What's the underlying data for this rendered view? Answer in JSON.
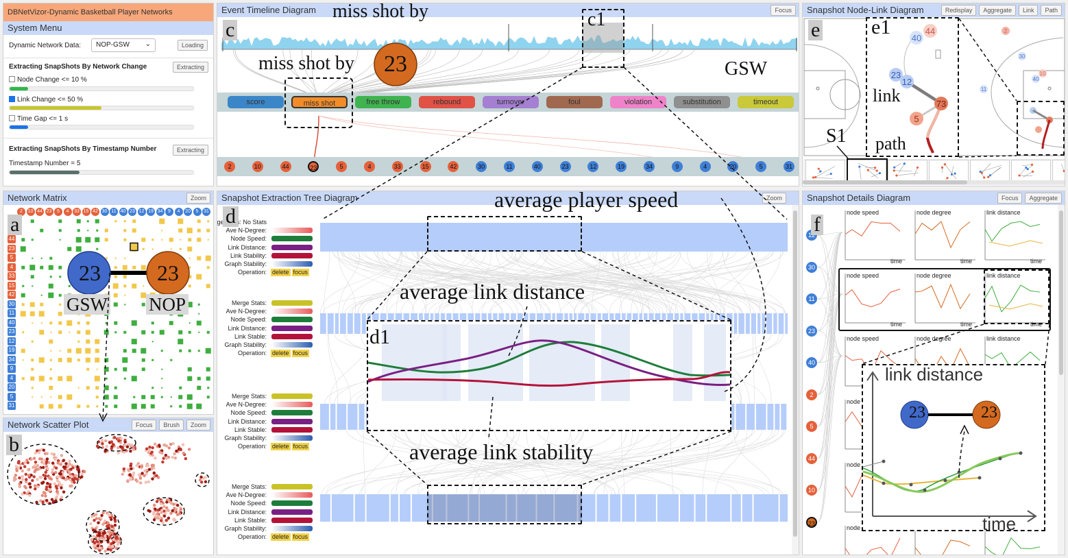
{
  "app_title": "DBNetVizor-Dynamic Basketball Player Networks Visualization",
  "system_menu": {
    "title": "System Menu",
    "dataset_label": "Dynamic Network Data:",
    "dataset_value": "NOP-GSW",
    "loading_btn": "Loading",
    "section1_title": "Extracting SnapShots By Network Change",
    "extract_btn1": "Extracting",
    "node_change": "Node Change <= 10 %",
    "node_change_checked": false,
    "node_change_level": 0.1,
    "link_change": "Link Change <= 50 %",
    "link_change_checked": true,
    "link_change_level": 0.5,
    "time_gap": "Time Gap <= 1 s",
    "time_gap_checked": false,
    "time_gap_level": 0.1,
    "section2_title": "Extracting SnapShots By Timestamp Number",
    "extract_btn2": "Extracting",
    "timestamp_number": "Timestamp Number = 5",
    "timestamp_level": 0.38
  },
  "matrix": {
    "title": "Network Matrix",
    "zoom_btn": "Zoom",
    "panel_tag": "a",
    "players": [
      "2",
      "10",
      "44",
      "23",
      "5",
      "4",
      "33",
      "15",
      "42",
      "30",
      "11",
      "40",
      "23",
      "12",
      "19",
      "34",
      "9",
      "4",
      "20",
      "5",
      "31"
    ],
    "team_left": "GSW",
    "team_right": "NOP",
    "node_left": "23",
    "node_right": "23"
  },
  "scatter": {
    "title": "Network Scatter Plot",
    "buttons": [
      "Focus",
      "Brush",
      "Zoom"
    ],
    "panel_tag": "b"
  },
  "timeline": {
    "title": "Event Timeline Diagram",
    "focus_btn": "Focus",
    "panel_tag": "c",
    "zoom_tag": "c1",
    "annot_top": "miss shot by",
    "annot_mid": "miss shot by",
    "annot_player": "23",
    "team_label": "GSW",
    "events": [
      {
        "label": "score",
        "color": "#3a86c8"
      },
      {
        "label": "miss shot",
        "color": "#f28c28"
      },
      {
        "label": "free throw",
        "color": "#3fb34f"
      },
      {
        "label": "rebound",
        "color": "#e15146"
      },
      {
        "label": "turnover",
        "color": "#a57fd1"
      },
      {
        "label": "foul",
        "color": "#a0694f"
      },
      {
        "label": "violation",
        "color": "#ef83c9"
      },
      {
        "label": "substitution",
        "color": "#8f8f8f"
      },
      {
        "label": "timeout",
        "color": "#c9c93a"
      }
    ],
    "players": [
      {
        "n": "2",
        "team": "NOP"
      },
      {
        "n": "10",
        "team": "NOP"
      },
      {
        "n": "44",
        "team": "NOP"
      },
      {
        "n": "23",
        "team": "NOP"
      },
      {
        "n": "5",
        "team": "NOP"
      },
      {
        "n": "4",
        "team": "NOP"
      },
      {
        "n": "33",
        "team": "NOP"
      },
      {
        "n": "15",
        "team": "NOP"
      },
      {
        "n": "42",
        "team": "NOP"
      },
      {
        "n": "30",
        "team": "GSW"
      },
      {
        "n": "11",
        "team": "GSW"
      },
      {
        "n": "40",
        "team": "GSW"
      },
      {
        "n": "23",
        "team": "GSW"
      },
      {
        "n": "12",
        "team": "GSW"
      },
      {
        "n": "19",
        "team": "GSW"
      },
      {
        "n": "34",
        "team": "GSW"
      },
      {
        "n": "9",
        "team": "GSW"
      },
      {
        "n": "4",
        "team": "GSW"
      },
      {
        "n": "20",
        "team": "GSW"
      },
      {
        "n": "5",
        "team": "GSW"
      },
      {
        "n": "31",
        "team": "GSW"
      }
    ]
  },
  "tree": {
    "title": "Snapshot Extraction Tree Diagram",
    "zoom_btn": "Zoom",
    "panel_tag": "d",
    "zoom_tag": "d1",
    "annot_speed": "average player speed",
    "annot_distance": "average link distance",
    "annot_stability": "average link stability",
    "level0": [
      "Merge Stats: No Stats",
      "Ave N-Degree:",
      "Node Speed:",
      "Link Distance:",
      "Link Stability:",
      "Graph Stability:",
      "Operation:"
    ],
    "level1": [
      "Merge Stats:",
      "Ave N-Degree:",
      "Node Speed:",
      "Link Distance:",
      "Link Stable:",
      "Graph Stability:",
      "Operation:"
    ],
    "level2": [
      "Merge Stats:",
      "Ave N-Degree:",
      "Node Speed:",
      "Link Distance:",
      "Link Stable:",
      "Graph Stability:",
      "Operation:"
    ],
    "level3": [
      "Merge Stats:",
      "Ave N-Degree:",
      "Node Speed:",
      "Link Distance:",
      "Link Stable:",
      "Graph Stability:",
      "Operation:"
    ],
    "op_delete": "delete",
    "op_focus": "focus"
  },
  "nodelink": {
    "title": "Snapshot Node-Link Diagram",
    "buttons": [
      "Redisplay",
      "Aggregate",
      "Link",
      "Path"
    ],
    "panel_tag": "e",
    "zoom_tag": "e1",
    "link_label": "link",
    "path_label": "path",
    "s1_label": "S1",
    "nodes": [
      "40",
      "44",
      "23",
      "12",
      "73",
      "5",
      "2",
      "30",
      "11",
      "40",
      "12",
      "5",
      "13"
    ]
  },
  "details": {
    "title": "Snapshot Details Diagram",
    "buttons": [
      "Focus",
      "Aggregate"
    ],
    "panel_tag": "f",
    "col_titles": [
      "node speed",
      "node degree",
      "link distance"
    ],
    "x_label": "time",
    "side_numbers": [
      {
        "n": "12",
        "team": "GSW"
      },
      {
        "n": "30",
        "team": "GSW"
      },
      {
        "n": "11",
        "team": "GSW"
      },
      {
        "n": "23",
        "team": "GSW"
      },
      {
        "n": "40",
        "team": "GSW"
      },
      {
        "n": "2",
        "team": "NOP"
      },
      {
        "n": "5",
        "team": "NOP"
      },
      {
        "n": "44",
        "team": "NOP"
      },
      {
        "n": "10",
        "team": "NOP"
      },
      {
        "n": "23",
        "team": "NOP"
      }
    ],
    "zoom_title": "link distance",
    "zoom_x": "time",
    "zoom_node_left": "23",
    "zoom_node_right": "23"
  },
  "colors": {
    "nop": "#e4613b",
    "gsw": "#3f7fd6",
    "node_orange": "#d46a1f",
    "node_blue": "#4169c9",
    "header": "#c9d9f7"
  }
}
